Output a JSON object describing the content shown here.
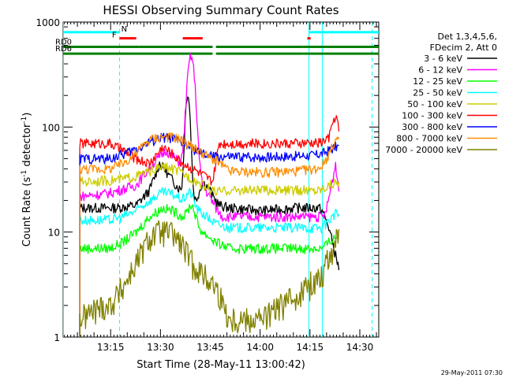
{
  "chart_data": {
    "type": "line",
    "title": "HESSI Observing Summary Count Rates",
    "xlabel": "Start Time (28-May-11 13:00:42)",
    "ylabel_main": "Count Rate (s",
    "ylabel_sup1": "-1",
    "ylabel_mid": " detector",
    "ylabel_sup2": "-1",
    "ylabel_end": ")",
    "yscale": "log",
    "ylim": [
      1,
      1000
    ],
    "xlim_minutes": [
      0,
      95
    ],
    "y_ticks": [
      {
        "value": 1,
        "label": "1"
      },
      {
        "value": 10,
        "label": "10"
      },
      {
        "value": 100,
        "label": "100"
      },
      {
        "value": 1000,
        "label": "1000"
      }
    ],
    "x_ticks": [
      {
        "value": 14.3,
        "label": "13:15"
      },
      {
        "value": 29.3,
        "label": "13:30"
      },
      {
        "value": 44.3,
        "label": "13:45"
      },
      {
        "value": 59.3,
        "label": "14:00"
      },
      {
        "value": 74.3,
        "label": "14:15"
      },
      {
        "value": 89.3,
        "label": "14:30"
      }
    ],
    "legend_header": [
      "Det 1,3,4,5,6,",
      "FDecim 2, Att 0"
    ],
    "legend_placement": "right",
    "series": [
      {
        "name": "3 - 6 keV",
        "color": "#000000",
        "level": 17,
        "peak_y": 210,
        "peak_x": 37.5,
        "peak_w": 0.9,
        "curve": [
          [
            5,
            17
          ],
          [
            12,
            17
          ],
          [
            14,
            17
          ],
          [
            16,
            17
          ],
          [
            22,
            18
          ],
          [
            26,
            25
          ],
          [
            29,
            45
          ],
          [
            31,
            38
          ],
          [
            34,
            28
          ],
          [
            36,
            24
          ],
          [
            38,
            22
          ],
          [
            40,
            20
          ],
          [
            42,
            30
          ],
          [
            44,
            26
          ],
          [
            45,
            22
          ],
          [
            47,
            18
          ],
          [
            50,
            17
          ],
          [
            60,
            16
          ],
          [
            70,
            17
          ],
          [
            77,
            17
          ],
          [
            78,
            16
          ],
          [
            80,
            11
          ],
          [
            82,
            6
          ],
          [
            83,
            4.5
          ]
        ]
      },
      {
        "name": "6 - 12 keV",
        "color": "#ff00ff",
        "level": 22,
        "peak_y": 470,
        "peak_x": 38.5,
        "peak_w": 1.4,
        "curve": [
          [
            5,
            22
          ],
          [
            12,
            23
          ],
          [
            15,
            24
          ],
          [
            22,
            28
          ],
          [
            27,
            45
          ],
          [
            31,
            60
          ],
          [
            34,
            50
          ],
          [
            36,
            42
          ],
          [
            38,
            40
          ],
          [
            40,
            38
          ],
          [
            42,
            28
          ],
          [
            44,
            22
          ],
          [
            46,
            17
          ],
          [
            48,
            14
          ],
          [
            55,
            14
          ],
          [
            65,
            14
          ],
          [
            75,
            14
          ],
          [
            77,
            14
          ],
          [
            78,
            14
          ],
          [
            79,
            15
          ],
          [
            81,
            30
          ],
          [
            82,
            45
          ],
          [
            83,
            25
          ]
        ]
      },
      {
        "name": "12 - 25 keV",
        "color": "#00ff00",
        "level": 7,
        "peak_y": 18,
        "peak_x": 38.5,
        "peak_w": 1.5,
        "curve": [
          [
            5,
            7
          ],
          [
            12,
            7
          ],
          [
            14,
            7
          ],
          [
            18,
            8
          ],
          [
            22,
            10
          ],
          [
            26,
            14
          ],
          [
            30,
            17
          ],
          [
            33,
            16
          ],
          [
            36,
            14
          ],
          [
            39,
            12
          ],
          [
            42,
            10
          ],
          [
            46,
            8
          ],
          [
            50,
            7
          ],
          [
            60,
            7
          ],
          [
            70,
            7
          ],
          [
            76,
            7
          ],
          [
            78,
            7
          ],
          [
            80,
            8
          ],
          [
            82,
            9
          ],
          [
            83,
            9
          ]
        ]
      },
      {
        "name": "25 - 50 keV",
        "color": "#00ffff",
        "level": 13,
        "peak_y": 24,
        "peak_x": 38,
        "peak_w": 1.5,
        "curve": [
          [
            5,
            13
          ],
          [
            12,
            13
          ],
          [
            14,
            13
          ],
          [
            18,
            14
          ],
          [
            22,
            16
          ],
          [
            26,
            20
          ],
          [
            30,
            24
          ],
          [
            33,
            23
          ],
          [
            36,
            20
          ],
          [
            39,
            17
          ],
          [
            42,
            15
          ],
          [
            46,
            12
          ],
          [
            50,
            11
          ],
          [
            60,
            11
          ],
          [
            70,
            11
          ],
          [
            76,
            11
          ],
          [
            78,
            11
          ],
          [
            80,
            13
          ],
          [
            82,
            15
          ],
          [
            83,
            15
          ]
        ]
      },
      {
        "name": "50 - 100 keV",
        "color": "#cccc00",
        "level": 31,
        "peak_y": 40,
        "peak_x": 30,
        "peak_w": 2,
        "curve": [
          [
            5,
            30
          ],
          [
            12,
            31
          ],
          [
            14,
            31
          ],
          [
            18,
            32
          ],
          [
            22,
            34
          ],
          [
            26,
            38
          ],
          [
            30,
            42
          ],
          [
            33,
            40
          ],
          [
            36,
            36
          ],
          [
            39,
            32
          ],
          [
            42,
            28
          ],
          [
            46,
            24
          ],
          [
            50,
            25
          ],
          [
            60,
            25
          ],
          [
            70,
            25
          ],
          [
            76,
            25
          ],
          [
            78,
            26
          ],
          [
            80,
            28
          ],
          [
            82,
            30
          ],
          [
            83,
            30
          ]
        ]
      },
      {
        "name": "100 - 300 keV",
        "color": "#ff0000",
        "level": 70,
        "peak_y": 125,
        "peak_x": 82,
        "peak_w": 0.8,
        "curve": [
          [
            5,
            70
          ],
          [
            12,
            70
          ],
          [
            14,
            70
          ],
          [
            18,
            60
          ],
          [
            22,
            50
          ],
          [
            26,
            45
          ],
          [
            30,
            65
          ],
          [
            33,
            55
          ],
          [
            36,
            45
          ],
          [
            39,
            40
          ],
          [
            42,
            35
          ],
          [
            45,
            30
          ],
          [
            47,
            70
          ],
          [
            55,
            70
          ],
          [
            65,
            70
          ],
          [
            75,
            70
          ],
          [
            78,
            72
          ],
          [
            80,
            80
          ],
          [
            82,
            120
          ],
          [
            83,
            80
          ]
        ]
      },
      {
        "name": "300 - 800 keV",
        "color": "#0000ff",
        "level": 50,
        "peak_y": 55,
        "peak_x": 82,
        "peak_w": 1,
        "curve": [
          [
            5,
            50
          ],
          [
            12,
            50
          ],
          [
            14,
            50
          ],
          [
            18,
            55
          ],
          [
            22,
            62
          ],
          [
            26,
            72
          ],
          [
            30,
            80
          ],
          [
            33,
            78
          ],
          [
            36,
            70
          ],
          [
            39,
            62
          ],
          [
            42,
            55
          ],
          [
            46,
            52
          ],
          [
            50,
            52
          ],
          [
            60,
            52
          ],
          [
            70,
            53
          ],
          [
            76,
            54
          ],
          [
            78,
            56
          ],
          [
            80,
            60
          ],
          [
            82,
            65
          ],
          [
            83,
            65
          ]
        ]
      },
      {
        "name": "800 - 7000 keV",
        "color": "#ff8c00",
        "level": 40,
        "peak_y": 80,
        "peak_x": 30,
        "peak_w": 5,
        "curve": [
          [
            5,
            40
          ],
          [
            12,
            40
          ],
          [
            14,
            40
          ],
          [
            18,
            45
          ],
          [
            22,
            55
          ],
          [
            26,
            70
          ],
          [
            30,
            82
          ],
          [
            33,
            80
          ],
          [
            36,
            72
          ],
          [
            39,
            64
          ],
          [
            42,
            56
          ],
          [
            46,
            48
          ],
          [
            50,
            38
          ],
          [
            60,
            37
          ],
          [
            70,
            38
          ],
          [
            76,
            40
          ],
          [
            78,
            43
          ],
          [
            80,
            55
          ],
          [
            82,
            75
          ],
          [
            83,
            78
          ]
        ]
      },
      {
        "name": "7000 - 20000 keV",
        "color": "#808000",
        "level": 2,
        "peak_y": 10,
        "peak_x": 30,
        "peak_w": 4,
        "curve": [
          [
            5,
            1.5
          ],
          [
            12,
            2
          ],
          [
            14,
            2
          ],
          [
            18,
            3
          ],
          [
            22,
            5
          ],
          [
            26,
            8
          ],
          [
            30,
            10
          ],
          [
            33,
            9
          ],
          [
            36,
            7
          ],
          [
            39,
            5
          ],
          [
            42,
            4
          ],
          [
            46,
            3
          ],
          [
            50,
            1.5
          ],
          [
            60,
            1.5
          ],
          [
            70,
            2.5
          ],
          [
            76,
            3.5
          ],
          [
            78,
            4
          ],
          [
            80,
            6
          ],
          [
            82,
            8
          ],
          [
            83,
            9.5
          ]
        ]
      }
    ],
    "flags": [
      {
        "label": "N",
        "color": "#00ffff",
        "y": 800,
        "segments": [
          [
            0,
            17
          ],
          [
            74,
            95
          ]
        ]
      },
      {
        "label": "F",
        "color": "#ff0000",
        "y": 700,
        "segments": [
          [
            17,
            22
          ],
          [
            36,
            42
          ],
          [
            73.5,
            74.5
          ]
        ]
      },
      {
        "label": "RD0",
        "color": "#008000",
        "y": 580,
        "segments": [
          [
            0,
            23
          ],
          [
            23,
            45
          ],
          [
            46,
            72
          ],
          [
            72,
            95
          ]
        ]
      },
      {
        "label": "RD6",
        "color": "#008000",
        "y": 500,
        "segments": [
          [
            0,
            45
          ],
          [
            46,
            72
          ],
          [
            72,
            95
          ]
        ]
      }
    ],
    "footer_date": "29-May-2011 07:30"
  }
}
